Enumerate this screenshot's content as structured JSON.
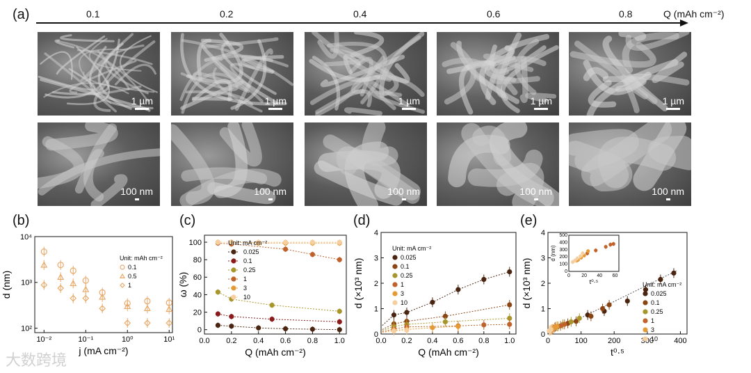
{
  "panel_labels": [
    "(a)",
    "(b)",
    "(c)",
    "(d)",
    "(e)"
  ],
  "panel_a": {
    "q_values": [
      "0.1",
      "0.2",
      "0.4",
      "0.6",
      "0.8"
    ],
    "q_axis_label": "Q (mAh cm⁻²)",
    "scale_top": "1 µm",
    "scale_bottom": "100 nm",
    "image_shade": [
      "#5e5e5e",
      "#666666",
      "#5b5b5b",
      "#626262",
      "#646464"
    ]
  },
  "watermark": "大数跨境",
  "chart_data": [
    {
      "id": "b",
      "type": "scatter",
      "xlabel": "j (mA cm⁻²)",
      "ylabel": "d (nm)",
      "xscale": "log",
      "yscale": "log",
      "xlim": [
        0.006,
        12
      ],
      "ylim": [
        80,
        10000
      ],
      "xticks": [
        0.01,
        0.1,
        1,
        10
      ],
      "xtick_labels": [
        "10⁻²",
        "10⁻¹",
        "10⁰",
        "10¹"
      ],
      "yticks": [
        100,
        1000,
        10000
      ],
      "ytick_labels": [
        "10²",
        "10³",
        "10⁴"
      ],
      "legend_title": "Unit: mAh cm⁻²",
      "legend_position": "upper-right",
      "series": [
        {
          "name": "0.1",
          "marker": "circle",
          "color": "#e8a968",
          "x": [
            0.01,
            0.025,
            0.05,
            0.1,
            0.25,
            1,
            3,
            10
          ],
          "y": [
            4700,
            2400,
            1800,
            1100,
            600,
            350,
            390,
            360
          ]
        },
        {
          "name": "0.5",
          "marker": "triangle",
          "color": "#e8a968",
          "x": [
            0.01,
            0.025,
            0.05,
            0.1,
            0.25,
            1,
            3,
            10
          ],
          "y": [
            2400,
            1300,
            950,
            700,
            480,
            300,
            270,
            260
          ]
        },
        {
          "name": "1",
          "marker": "diamond",
          "color": "#e8a968",
          "x": [
            0.01,
            0.025,
            0.05,
            0.1,
            0.25,
            1,
            3,
            10
          ],
          "y": [
            880,
            750,
            450,
            450,
            270,
            130,
            130,
            130
          ]
        }
      ]
    },
    {
      "id": "c",
      "type": "line",
      "xlabel": "Q (mAh cm⁻²)",
      "ylabel": "ω (%)",
      "xlim": [
        0,
        1.05
      ],
      "ylim": [
        -5,
        108
      ],
      "xticks": [
        0.0,
        0.2,
        0.4,
        0.6,
        0.8,
        1.0
      ],
      "xtick_labels": [
        "0.0",
        "0.2",
        "0.4",
        "0.6",
        "0.8",
        "1.0"
      ],
      "yticks": [
        0,
        20,
        40,
        60,
        80,
        100
      ],
      "ytick_labels": [
        "0",
        "20",
        "40",
        "60",
        "80",
        "100"
      ],
      "legend_title": "Unit: mA cm⁻²",
      "legend_position": "center",
      "series": [
        {
          "name": "0.025",
          "color": "#4a2511",
          "x": [
            0.1,
            0.2,
            0.4,
            0.6,
            0.8,
            1.0
          ],
          "y": [
            5,
            4,
            2,
            1,
            0.5,
            0
          ]
        },
        {
          "name": "0.1",
          "color": "#8b1a1a",
          "x": [
            0.1,
            0.2,
            0.5,
            1.0
          ],
          "y": [
            18,
            15,
            12,
            9
          ]
        },
        {
          "name": "0.25",
          "color": "#a8962c",
          "x": [
            0.1,
            0.2,
            0.5,
            1.0
          ],
          "y": [
            43,
            35,
            28,
            21
          ]
        },
        {
          "name": "1",
          "color": "#c0622b",
          "x": [
            0.1,
            0.2,
            0.6,
            0.8,
            1.0
          ],
          "y": [
            99,
            98,
            92,
            86,
            80
          ]
        },
        {
          "name": "3",
          "color": "#e59a35",
          "x": [
            0.1,
            0.2,
            0.4,
            0.6,
            0.8,
            1.0
          ],
          "y": [
            100,
            100,
            99,
            99,
            99,
            99
          ]
        },
        {
          "name": "10",
          "color": "#f6cfa0",
          "x": [
            0.1,
            0.2,
            0.4,
            0.6,
            0.8,
            1.0
          ],
          "y": [
            100,
            100,
            100,
            100,
            100,
            100
          ]
        }
      ]
    },
    {
      "id": "d",
      "type": "scatter",
      "xlabel": "Q (mAh cm⁻²)",
      "ylabel": "d (×10³ nm)",
      "xlim": [
        0,
        1.05
      ],
      "ylim": [
        0,
        4
      ],
      "xticks": [
        0.0,
        0.2,
        0.4,
        0.6,
        0.8,
        1.0
      ],
      "xtick_labels": [
        "0.0",
        "0.2",
        "0.4",
        "0.6",
        "0.8",
        "1.0"
      ],
      "yticks": [
        0,
        1,
        2,
        3,
        4
      ],
      "ytick_labels": [
        "0",
        "1",
        "2",
        "3",
        "4"
      ],
      "legend_title": "Unit: mA cm⁻²",
      "legend_position": "upper-left",
      "series": [
        {
          "name": "0.025",
          "color": "#4a2511",
          "x": [
            0.1,
            0.2,
            0.4,
            0.6,
            0.8,
            1.0
          ],
          "y": [
            0.75,
            0.85,
            1.25,
            1.75,
            2.15,
            2.45
          ]
        },
        {
          "name": "0.1",
          "color": "#8b4513",
          "x": [
            0.1,
            0.2,
            0.5,
            1.0
          ],
          "y": [
            0.4,
            0.5,
            0.7,
            1.15
          ]
        },
        {
          "name": "0.25",
          "color": "#a8962c",
          "x": [
            0.1,
            0.2,
            0.5,
            1.0
          ],
          "y": [
            0.3,
            0.38,
            0.48,
            0.62
          ]
        },
        {
          "name": "1",
          "color": "#c0622b",
          "x": [
            0.1,
            0.2,
            0.6,
            0.8,
            1.0
          ],
          "y": [
            0.2,
            0.28,
            0.32,
            0.36,
            0.38
          ]
        },
        {
          "name": "3",
          "color": "#e59a35",
          "x": [
            0.1,
            0.2,
            0.4,
            0.6
          ],
          "y": [
            0.15,
            0.18,
            0.25,
            0.3
          ]
        },
        {
          "name": "10",
          "color": "#f6cfa0",
          "x": [
            0.1,
            0.2
          ],
          "y": [
            0.12,
            0.15
          ]
        }
      ]
    },
    {
      "id": "e",
      "type": "scatter",
      "xlabel": "t⁰·⁵",
      "ylabel": "d (×10³ nm)",
      "xlim": [
        0,
        420
      ],
      "ylim": [
        0,
        4
      ],
      "xticks": [
        0,
        100,
        200,
        300,
        400
      ],
      "xtick_labels": [
        "0",
        "100",
        "200",
        "300",
        "400"
      ],
      "yticks": [
        0,
        1,
        2,
        3,
        4
      ],
      "ytick_labels": [
        "0",
        "1",
        "2",
        "3",
        "4"
      ],
      "legend_title": "Unit: mA cm⁻²",
      "legend_position": "lower-right",
      "series": [
        {
          "name": "0.025",
          "color": "#4a2511",
          "x": [
            120,
            170,
            240,
            295,
            340,
            380
          ],
          "y": [
            0.75,
            0.9,
            1.3,
            1.75,
            2.15,
            2.4
          ]
        },
        {
          "name": "0.1",
          "color": "#8b4513",
          "x": [
            60,
            85,
            130,
            165,
            185
          ],
          "y": [
            0.42,
            0.5,
            0.7,
            1.0,
            1.15
          ]
        },
        {
          "name": "0.25",
          "color": "#a8962c",
          "x": [
            30,
            45,
            70,
            95
          ],
          "y": [
            0.3,
            0.38,
            0.48,
            0.62
          ]
        },
        {
          "name": "1",
          "color": "#c0622b",
          "x": [
            15,
            22,
            38,
            50
          ],
          "y": [
            0.2,
            0.28,
            0.32,
            0.38
          ]
        },
        {
          "name": "3",
          "color": "#e59a35",
          "x": [
            8,
            12,
            20,
            27
          ],
          "y": [
            0.15,
            0.18,
            0.25,
            0.3
          ]
        },
        {
          "name": "10",
          "color": "#f6cfa0",
          "x": [
            4,
            6,
            9
          ],
          "y": [
            0.12,
            0.15,
            0.18
          ]
        }
      ],
      "inset": {
        "xlabel": "t⁰·⁵",
        "ylabel": "d (nm)",
        "xlim": [
          0,
          65
        ],
        "ylim": [
          0,
          500
        ],
        "xticks": [
          0,
          20,
          40,
          60
        ],
        "xtick_labels": [
          "0",
          "20",
          "40",
          "60"
        ],
        "yticks": [
          0,
          100,
          200,
          300,
          400,
          500
        ],
        "ytick_labels": [
          "0",
          "100",
          "200",
          "300",
          "400",
          "500"
        ],
        "series": [
          {
            "name": "1",
            "color": "#c0622b",
            "x": [
              24,
              35,
              48,
              54,
              58
            ],
            "y": [
              250,
              290,
              340,
              370,
              380
            ]
          },
          {
            "name": "3",
            "color": "#e59a35",
            "x": [
              10,
              12,
              16,
              20,
              25
            ],
            "y": [
              150,
              160,
              190,
              220,
              280
            ]
          },
          {
            "name": "10",
            "color": "#f6cfa0",
            "x": [
              5,
              8,
              11,
              15,
              18
            ],
            "y": [
              130,
              150,
              180,
              210,
              250
            ]
          }
        ]
      }
    }
  ]
}
